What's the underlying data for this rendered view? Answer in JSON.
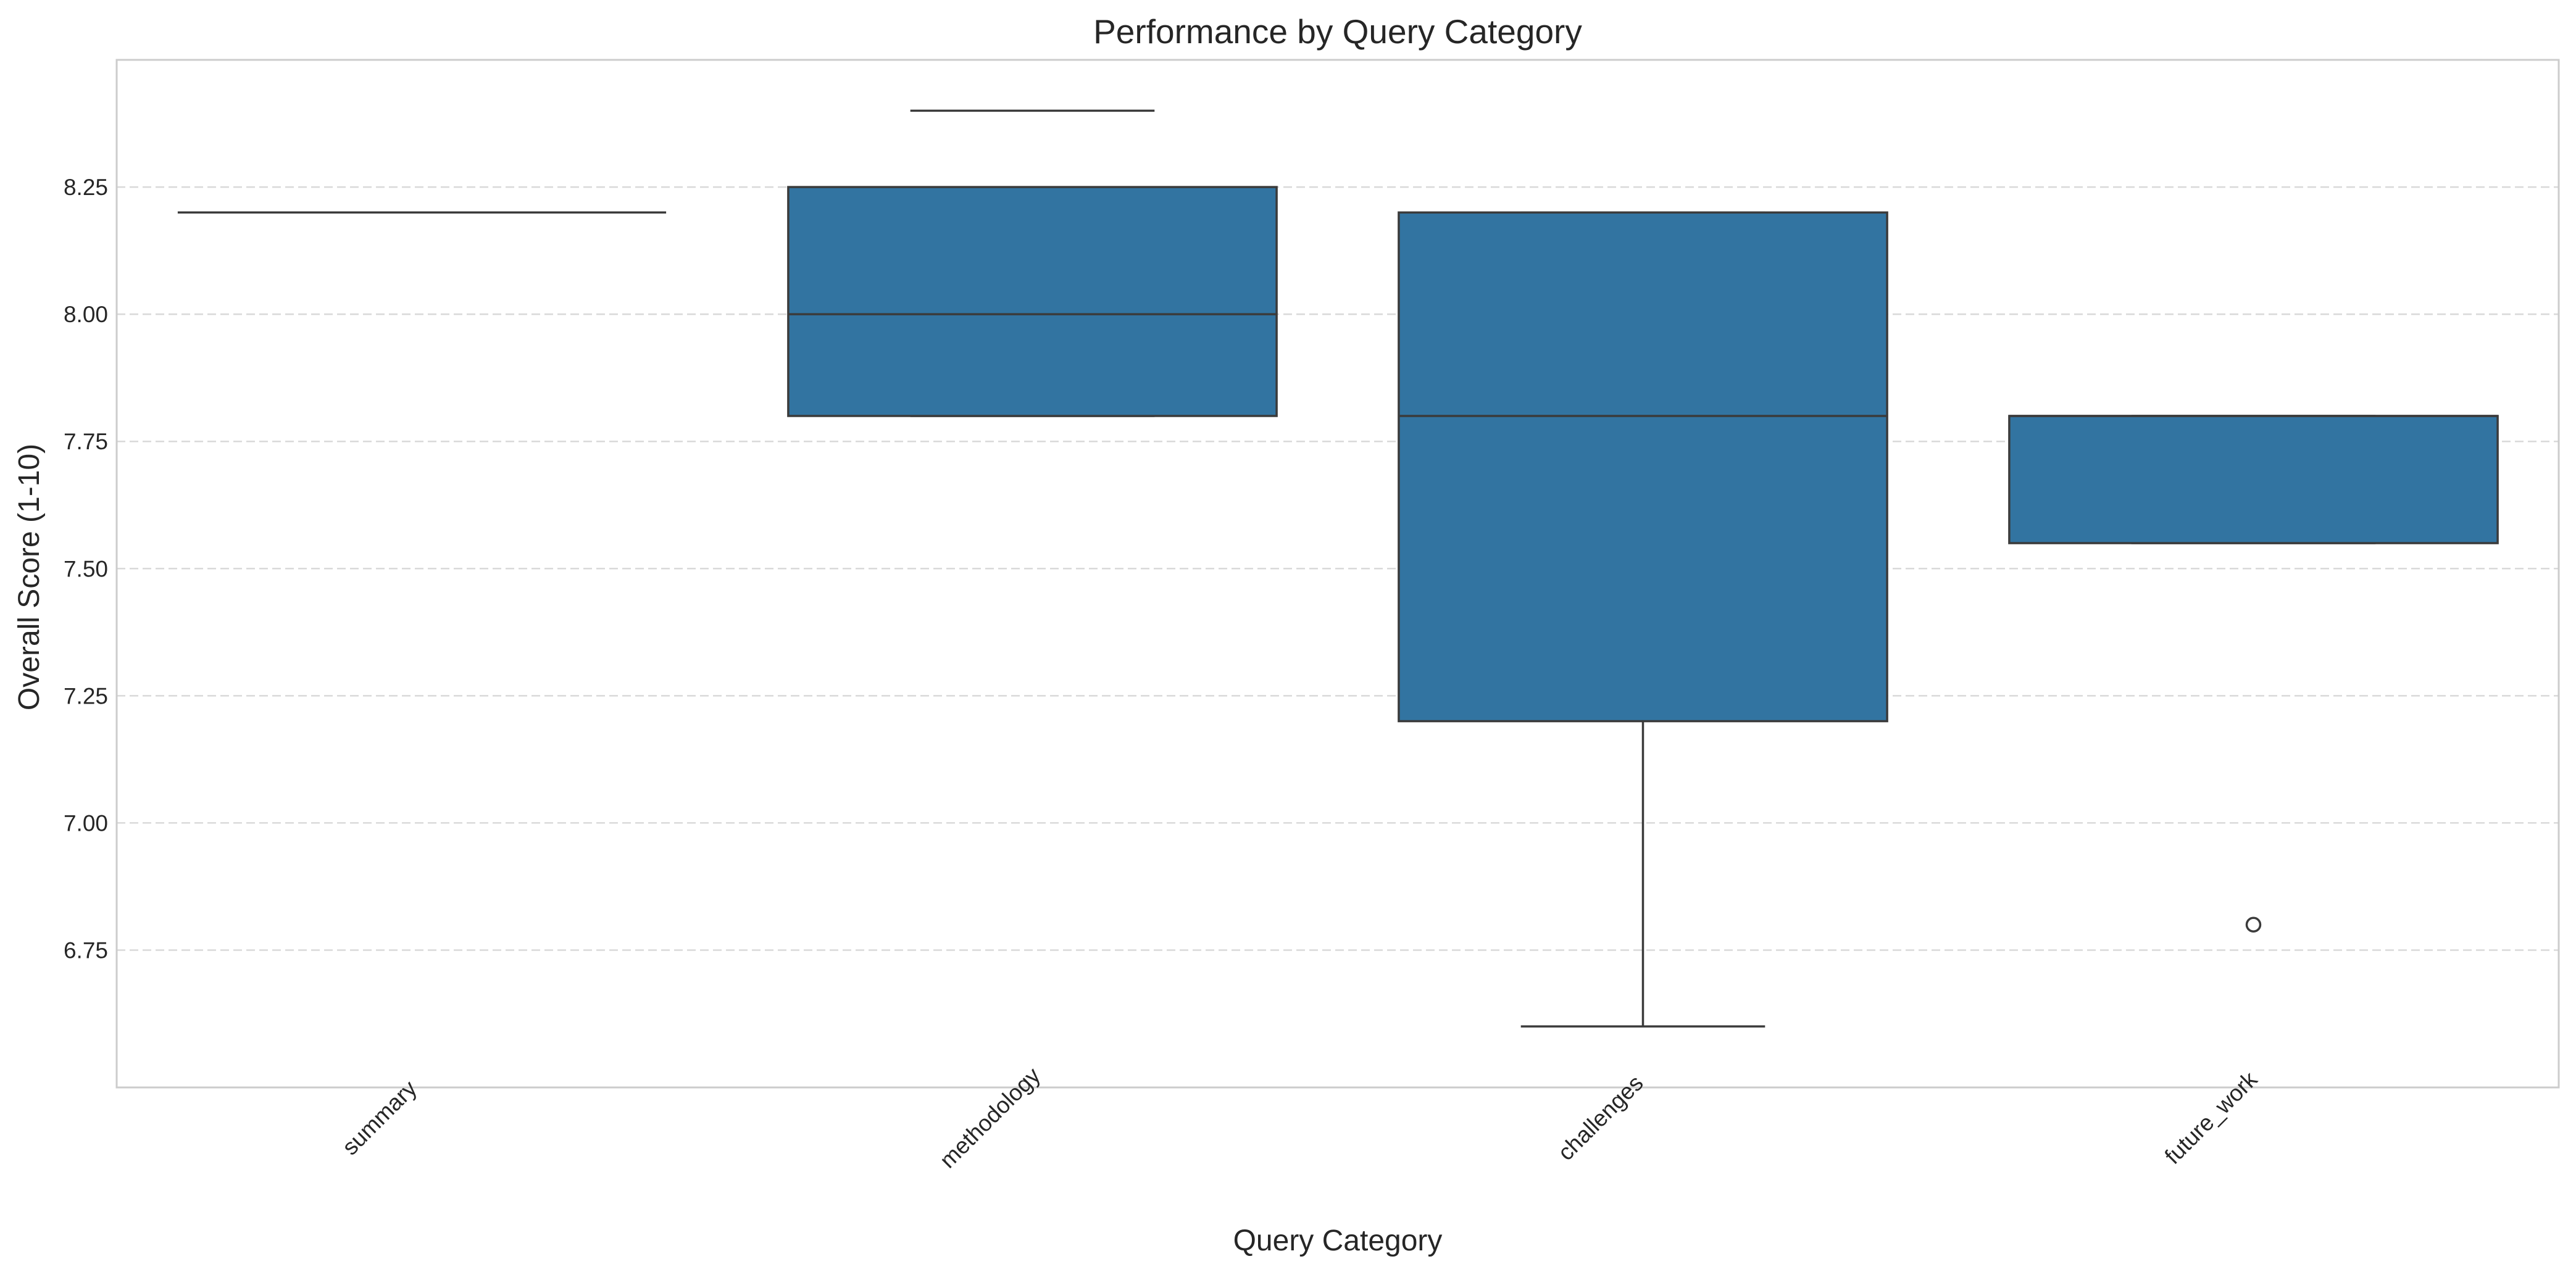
{
  "chart_data": {
    "type": "box",
    "title": "Performance by Query Category",
    "xlabel": "Query Category",
    "ylabel": "Overall Score (1-10)",
    "categories": [
      "summary",
      "methodology",
      "challenges",
      "future_work"
    ],
    "ylim": [
      6.48,
      8.5
    ],
    "yticks": [
      6.75,
      7.0,
      7.25,
      7.5,
      7.75,
      8.0,
      8.25
    ],
    "ytick_labels": [
      "6.75",
      "7.00",
      "7.25",
      "7.50",
      "7.75",
      "8.00",
      "8.25"
    ],
    "grid": {
      "y": true,
      "x": false,
      "style": "dashed"
    },
    "box_color": "#3274a1",
    "line_color": "#3b3b3b",
    "boxes": [
      {
        "category": "summary",
        "whisker_low": 8.2,
        "q1": 8.2,
        "median": 8.2,
        "q3": 8.2,
        "whisker_high": 8.2,
        "outliers": []
      },
      {
        "category": "methodology",
        "whisker_low": 7.8,
        "q1": 7.8,
        "median": 8.0,
        "q3": 8.25,
        "whisker_high": 8.4,
        "outliers": []
      },
      {
        "category": "challenges",
        "whisker_low": 6.6,
        "q1": 7.2,
        "median": 7.8,
        "q3": 8.2,
        "whisker_high": 8.2,
        "outliers": []
      },
      {
        "category": "future_work",
        "whisker_low": 7.55,
        "q1": 7.55,
        "median": 7.8,
        "q3": 7.8,
        "whisker_high": 7.8,
        "outliers": [
          6.8
        ]
      }
    ]
  }
}
